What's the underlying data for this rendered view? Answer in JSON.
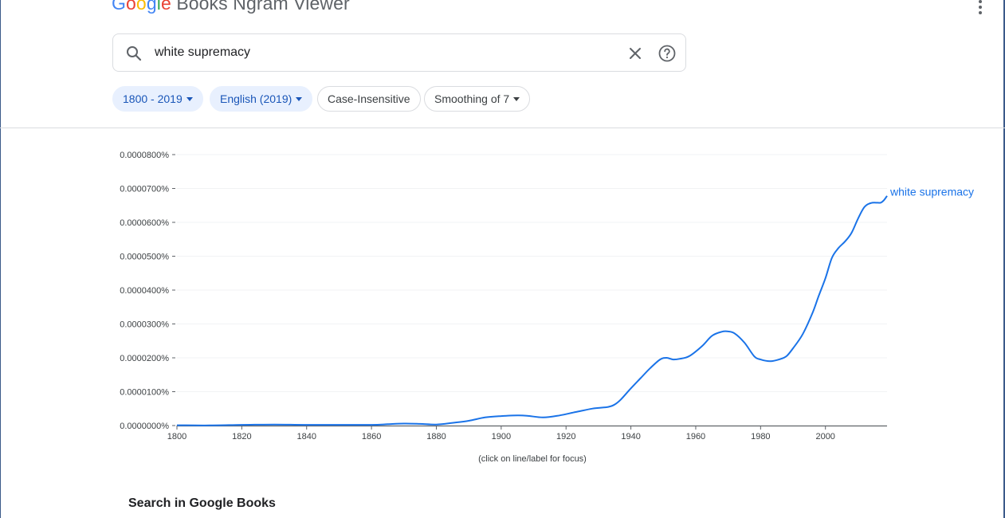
{
  "header": {
    "logo_letters": [
      "G",
      "o",
      "o",
      "g",
      "l",
      "e"
    ],
    "logo_rest": " Books Ngram Viewer",
    "menu_icon": "more-vert-icon"
  },
  "search": {
    "value": "white supremacy",
    "search_icon": "search-icon",
    "clear_icon": "close-icon",
    "help_icon": "help-circle-icon"
  },
  "filters": {
    "year_range": "1800 - 2019",
    "corpus": "English (2019)",
    "case": "Case-Insensitive",
    "smoothing": "Smoothing of 7"
  },
  "chart_data": {
    "type": "line",
    "xlabel": "(click on line/label for focus)",
    "ylabel": "",
    "xlim": [
      1800,
      2019
    ],
    "ylim": [
      0,
      8e-07
    ],
    "y_ticks": [
      "0.0000000%",
      "0.0000100%",
      "0.0000200%",
      "0.0000300%",
      "0.0000400%",
      "0.0000500%",
      "0.0000600%",
      "0.0000700%",
      "0.0000800%"
    ],
    "x_ticks": [
      "1800",
      "1820",
      "1840",
      "1860",
      "1880",
      "1900",
      "1920",
      "1940",
      "1960",
      "1980",
      "2000"
    ],
    "grid": true,
    "series": [
      {
        "name": "white supremacy",
        "color": "#1a73e8",
        "x": [
          1800,
          1810,
          1820,
          1830,
          1840,
          1850,
          1860,
          1865,
          1870,
          1875,
          1880,
          1885,
          1890,
          1895,
          1900,
          1905,
          1908,
          1913,
          1918,
          1923,
          1928,
          1930,
          1933,
          1935,
          1937,
          1940,
          1943,
          1946,
          1949,
          1951,
          1953,
          1955,
          1958,
          1962,
          1965,
          1968,
          1970,
          1972,
          1975,
          1978,
          1980,
          1983,
          1986,
          1988,
          1990,
          1993,
          1996,
          1998,
          2000,
          2002,
          2004,
          2006,
          2008,
          2010,
          2012,
          2014,
          2016,
          2017,
          2018,
          2019
        ],
        "values": [
          1e-09,
          5e-10,
          2e-09,
          3e-09,
          2e-09,
          2e-09,
          2e-09,
          4e-09,
          6e-09,
          5e-09,
          3e-09,
          8e-09,
          1.4e-08,
          2.4e-08,
          2.8e-08,
          3e-08,
          2.9e-08,
          2.4e-08,
          3e-08,
          4e-08,
          5e-08,
          5.2e-08,
          5.5e-08,
          6.2e-08,
          7.8e-08,
          1.1e-07,
          1.4e-07,
          1.7e-07,
          1.95e-07,
          2e-07,
          1.95e-07,
          1.97e-07,
          2.05e-07,
          2.35e-07,
          2.65e-07,
          2.77e-07,
          2.78e-07,
          2.72e-07,
          2.45e-07,
          2.05e-07,
          1.95e-07,
          1.9e-07,
          1.96e-07,
          2.05e-07,
          2.28e-07,
          2.7e-07,
          3.32e-07,
          3.85e-07,
          4.35e-07,
          4.95e-07,
          5.24e-07,
          5.43e-07,
          5.68e-07,
          6.1e-07,
          6.45e-07,
          6.57e-07,
          6.58e-07,
          6.58e-07,
          6.65e-07,
          6.78e-07
        ]
      }
    ]
  },
  "books_section": {
    "title": "Search in Google Books"
  }
}
